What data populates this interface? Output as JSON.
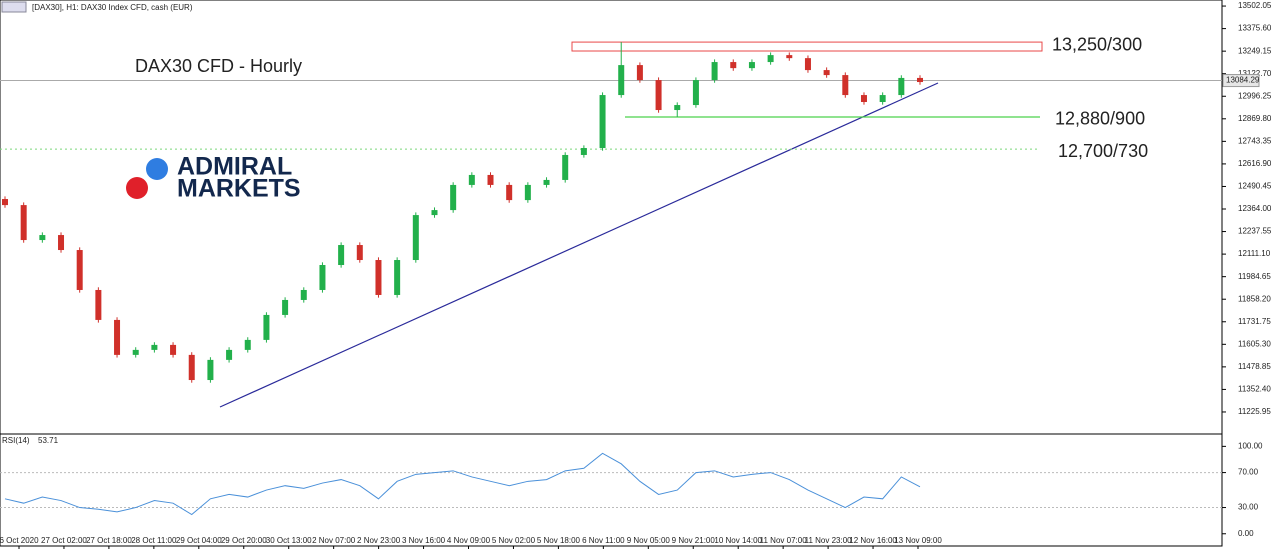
{
  "chart_data": {
    "type": "candlestick",
    "header": "[DAX30], H1:  DAX30 Index CFD, cash (EUR)",
    "title": "DAX30 CFD - Hourly",
    "logo": [
      "ADMIRAL",
      "MARKETS"
    ],
    "ylim": [
      11108,
      13536
    ],
    "yticks": [
      {
        "value": 13502.05,
        "label": "13502.05"
      },
      {
        "value": 13375.6,
        "label": "13375.60"
      },
      {
        "value": 13249.15,
        "label": "13249.15"
      },
      {
        "value": 13122.7,
        "label": "13122.70"
      },
      {
        "value": 12996.25,
        "label": "12996.25"
      },
      {
        "value": 12869.8,
        "label": "12869.80"
      },
      {
        "value": 12743.35,
        "label": "12743.35"
      },
      {
        "value": 12616.9,
        "label": "12616.90"
      },
      {
        "value": 12490.45,
        "label": "12490.45"
      },
      {
        "value": 12364,
        "label": "12364.00"
      },
      {
        "value": 12237.55,
        "label": "12237.55"
      },
      {
        "value": 12111.1,
        "label": "12111.10"
      },
      {
        "value": 11984.65,
        "label": "11984.65"
      },
      {
        "value": 11858.2,
        "label": "11858.20"
      },
      {
        "value": 11731.75,
        "label": "11731.75"
      },
      {
        "value": 11605.3,
        "label": "11605.30"
      },
      {
        "value": 11478.85,
        "label": "11478.85"
      },
      {
        "value": 11352.4,
        "label": "11352.40"
      },
      {
        "value": 11225.95,
        "label": "11225.95"
      }
    ],
    "current_price": 13084.29,
    "up_color": "#22b04b",
    "down_color": "#d0302a",
    "time_labels": [
      "6 Oct 2020",
      "27 Oct 02:00",
      "27 Oct 18:00",
      "28 Oct 11:00",
      "29 Oct 04:00",
      "29 Oct 20:00",
      "30 Oct 13:00",
      "2 Nov 07:00",
      "2 Nov 23:00",
      "3 Nov 16:00",
      "4 Nov 09:00",
      "5 Nov 02:00",
      "5 Nov 18:00",
      "6 Nov 11:00",
      "9 Nov 05:00",
      "9 Nov 21:00",
      "10 Nov 14:00",
      "11 Nov 07:00",
      "11 Nov 23:00",
      "12 Nov 16:00",
      "13 Nov 09:00"
    ],
    "open": [
      12420,
      12386,
      12190,
      12218,
      12134,
      11910,
      11742,
      11546,
      11574,
      11602,
      11546,
      11405,
      11518,
      11574,
      11630,
      11770,
      11854,
      11910,
      12050,
      12162,
      12078,
      11882,
      12078,
      12330,
      12358,
      12499,
      12555,
      12499,
      12414,
      12499,
      12527,
      12667,
      12706,
      13003,
      13171,
      13087,
      12919,
      12947,
      13087,
      13188,
      13154,
      13188,
      13227,
      13210,
      13143,
      13115,
      13003,
      12964,
      13003,
      13099
    ],
    "high": [
      12435,
      12401,
      12233,
      12233,
      12149,
      11925,
      11757,
      11589,
      11617,
      11617,
      11561,
      11533,
      11589,
      11645,
      11785,
      11869,
      11925,
      12065,
      12177,
      12177,
      12093,
      12093,
      12345,
      12373,
      12514,
      12570,
      12570,
      12514,
      12514,
      12542,
      12682,
      12721,
      13018,
      13300,
      13186,
      13102,
      12962,
      13102,
      13203,
      13203,
      13203,
      13242,
      13242,
      13225,
      13158,
      13130,
      13018,
      13018,
      13114,
      13114
    ],
    "low": [
      12371,
      12175,
      12175,
      12119,
      11895,
      11727,
      11531,
      11531,
      11559,
      11531,
      11390,
      11390,
      11503,
      11559,
      11615,
      11755,
      11839,
      11895,
      12035,
      12063,
      11867,
      11867,
      12063,
      12315,
      12343,
      12484,
      12484,
      12399,
      12399,
      12484,
      12512,
      12652,
      12691,
      12988,
      13072,
      12904,
      12880,
      12932,
      13072,
      13139,
      13139,
      13173,
      13195,
      13128,
      13100,
      12988,
      12949,
      12949,
      12988,
      13061
    ],
    "close": [
      12386,
      12190,
      12218,
      12134,
      11910,
      11742,
      11546,
      11574,
      11602,
      11546,
      11405,
      11518,
      11574,
      11630,
      11770,
      11854,
      11910,
      12050,
      12162,
      12078,
      11882,
      12078,
      12330,
      12358,
      12499,
      12555,
      12499,
      12414,
      12499,
      12527,
      12667,
      12706,
      13003,
      13171,
      13087,
      12919,
      12947,
      13087,
      13188,
      13154,
      13188,
      13227,
      13210,
      13143,
      13115,
      13003,
      12964,
      13003,
      13099,
      13076
    ],
    "levels": [
      {
        "label": "13,250/300",
        "from": 13250,
        "to": 13300,
        "color": "#e84848",
        "style": "zone"
      },
      {
        "label": "12,880/900",
        "from": 12880,
        "to": 12880,
        "color": "#4cd24c",
        "style": "solid"
      },
      {
        "label": "12,700/730",
        "from": 12700,
        "to": 12700,
        "color": "#7ad67a",
        "style": "dotted"
      }
    ],
    "rsi": {
      "name": "RSI(14)",
      "color": "#4a90d9",
      "ylim": [
        -14,
        113
      ],
      "yticks": [
        {
          "value": 100,
          "label": "100.00"
        },
        {
          "value": 70,
          "label": "70.00"
        },
        {
          "value": 30,
          "label": "30.00"
        },
        {
          "value": 0,
          "label": "0.00"
        }
      ],
      "values": [
        40,
        35,
        42,
        38,
        30,
        28,
        25,
        30,
        38,
        35,
        22,
        40,
        45,
        42,
        50,
        55,
        52,
        58,
        62,
        55,
        40,
        60,
        68,
        70,
        72,
        65,
        60,
        55,
        60,
        62,
        72,
        75,
        92,
        80,
        60,
        45,
        50,
        70,
        72,
        65,
        68,
        70,
        62,
        50,
        40,
        30,
        42,
        40,
        65,
        53.71
      ]
    }
  }
}
